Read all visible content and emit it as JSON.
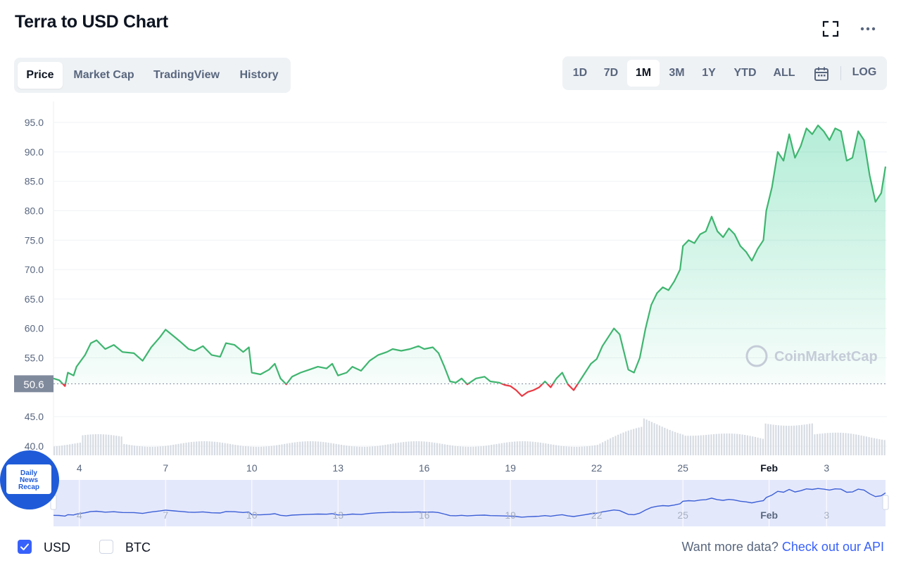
{
  "page": {
    "title": "Terra to USD Chart"
  },
  "toolbar": {
    "fullscreen_icon": "fullscreen-icon",
    "more_icon": "more-dots-icon"
  },
  "tabs": [
    {
      "label": "Price",
      "active": true
    },
    {
      "label": "Market Cap",
      "active": false
    },
    {
      "label": "TradingView",
      "active": false
    },
    {
      "label": "History",
      "active": false
    }
  ],
  "ranges": [
    {
      "label": "1D",
      "active": false
    },
    {
      "label": "7D",
      "active": false
    },
    {
      "label": "1M",
      "active": true
    },
    {
      "label": "3M",
      "active": false
    },
    {
      "label": "1Y",
      "active": false
    },
    {
      "label": "YTD",
      "active": false
    },
    {
      "label": "ALL",
      "active": false
    }
  ],
  "range_controls": {
    "calendar_icon": "calendar-icon",
    "log_label": "LOG"
  },
  "chart_data": {
    "type": "line",
    "title": "Terra to USD Chart",
    "xlabel": "",
    "ylabel": "",
    "ylim": [
      40,
      97
    ],
    "y_ticks": [
      "95.0",
      "90.0",
      "85.0",
      "80.0",
      "75.0",
      "70.0",
      "65.0",
      "60.0",
      "55.0",
      "45.0",
      "40.0"
    ],
    "x_tick_labels": [
      "4",
      "7",
      "10",
      "13",
      "16",
      "19",
      "22",
      "25",
      "Feb",
      "3"
    ],
    "x_tick_days": [
      4,
      7,
      10,
      13,
      16,
      19,
      22,
      25,
      28,
      30
    ],
    "x_range_days": [
      3.1,
      32.05
    ],
    "reference_price": 50.6,
    "reference_label": "50.6",
    "grid": true,
    "watermark": "CoinMarketCap",
    "colors": {
      "up": "#16c784",
      "down": "#ea3943",
      "line_up": "#3fb56f",
      "volume": "#d7dce3",
      "navigator_line": "#3b5fd6",
      "navigator_fill": "#e4e8fb"
    },
    "series": [
      {
        "points": [
          [
            3.1,
            51.5
          ],
          [
            3.3,
            51.2
          ],
          [
            3.5,
            50.2
          ],
          [
            3.6,
            52.5
          ],
          [
            3.8,
            52.0
          ],
          [
            3.9,
            53.5
          ],
          [
            4.2,
            55.5
          ],
          [
            4.4,
            57.5
          ],
          [
            4.6,
            58.0
          ],
          [
            4.9,
            56.5
          ],
          [
            5.2,
            57.2
          ],
          [
            5.5,
            56.0
          ],
          [
            5.9,
            55.8
          ],
          [
            6.2,
            54.5
          ],
          [
            6.5,
            56.8
          ],
          [
            6.8,
            58.5
          ],
          [
            7.0,
            59.8
          ],
          [
            7.3,
            58.6
          ],
          [
            7.5,
            57.8
          ],
          [
            7.8,
            56.5
          ],
          [
            8.0,
            56.2
          ],
          [
            8.3,
            57.0
          ],
          [
            8.6,
            55.5
          ],
          [
            8.9,
            55.2
          ],
          [
            9.1,
            57.5
          ],
          [
            9.4,
            57.2
          ],
          [
            9.7,
            56.0
          ],
          [
            9.9,
            56.8
          ],
          [
            10.0,
            52.5
          ],
          [
            10.3,
            52.2
          ],
          [
            10.6,
            53.0
          ],
          [
            10.8,
            54.0
          ],
          [
            11.0,
            51.5
          ],
          [
            11.2,
            50.5
          ],
          [
            11.4,
            51.8
          ],
          [
            11.7,
            52.5
          ],
          [
            12.0,
            53.0
          ],
          [
            12.3,
            53.5
          ],
          [
            12.6,
            53.2
          ],
          [
            12.8,
            54.0
          ],
          [
            13.0,
            52.0
          ],
          [
            13.3,
            52.5
          ],
          [
            13.5,
            53.5
          ],
          [
            13.8,
            52.8
          ],
          [
            14.1,
            54.5
          ],
          [
            14.4,
            55.5
          ],
          [
            14.7,
            56.0
          ],
          [
            14.9,
            56.5
          ],
          [
            15.2,
            56.2
          ],
          [
            15.5,
            56.5
          ],
          [
            15.8,
            57.0
          ],
          [
            16.0,
            56.5
          ],
          [
            16.3,
            56.8
          ],
          [
            16.5,
            55.8
          ],
          [
            16.7,
            53.5
          ],
          [
            16.9,
            51.0
          ],
          [
            17.1,
            50.8
          ],
          [
            17.3,
            51.5
          ],
          [
            17.5,
            50.5
          ],
          [
            17.8,
            51.5
          ],
          [
            18.1,
            51.8
          ],
          [
            18.3,
            51.0
          ],
          [
            18.6,
            50.8
          ],
          [
            18.8,
            50.4
          ],
          [
            19.0,
            50.2
          ],
          [
            19.2,
            49.5
          ],
          [
            19.4,
            48.5
          ],
          [
            19.6,
            49.2
          ],
          [
            19.8,
            49.5
          ],
          [
            20.0,
            50.0
          ],
          [
            20.2,
            51.0
          ],
          [
            20.4,
            50.0
          ],
          [
            20.6,
            51.5
          ],
          [
            20.8,
            52.5
          ],
          [
            21.0,
            50.5
          ],
          [
            21.2,
            49.5
          ],
          [
            21.4,
            51.0
          ],
          [
            21.6,
            52.5
          ],
          [
            21.8,
            54.0
          ],
          [
            22.0,
            54.8
          ],
          [
            22.2,
            57.0
          ],
          [
            22.4,
            58.5
          ],
          [
            22.6,
            60.0
          ],
          [
            22.8,
            59.0
          ],
          [
            23.0,
            55.0
          ],
          [
            23.1,
            53.0
          ],
          [
            23.3,
            52.5
          ],
          [
            23.5,
            55.0
          ],
          [
            23.7,
            60.0
          ],
          [
            23.9,
            64.0
          ],
          [
            24.1,
            66.0
          ],
          [
            24.3,
            67.0
          ],
          [
            24.5,
            66.5
          ],
          [
            24.7,
            68.0
          ],
          [
            24.9,
            70.0
          ],
          [
            25.0,
            74.0
          ],
          [
            25.2,
            75.0
          ],
          [
            25.4,
            74.5
          ],
          [
            25.6,
            76.0
          ],
          [
            25.8,
            76.5
          ],
          [
            26.0,
            79.0
          ],
          [
            26.2,
            76.5
          ],
          [
            26.4,
            75.5
          ],
          [
            26.6,
            77.0
          ],
          [
            26.8,
            76.0
          ],
          [
            27.0,
            74.0
          ],
          [
            27.2,
            73.0
          ],
          [
            27.4,
            71.5
          ],
          [
            27.6,
            73.5
          ],
          [
            27.8,
            75.0
          ],
          [
            27.9,
            80.0
          ],
          [
            28.1,
            84.0
          ],
          [
            28.3,
            90.0
          ],
          [
            28.5,
            88.5
          ],
          [
            28.7,
            93.0
          ],
          [
            28.9,
            89.0
          ],
          [
            29.1,
            91.0
          ],
          [
            29.3,
            94.0
          ],
          [
            29.5,
            93.0
          ],
          [
            29.7,
            94.5
          ],
          [
            29.9,
            93.5
          ],
          [
            30.1,
            92.0
          ],
          [
            30.3,
            94.0
          ],
          [
            30.5,
            93.5
          ],
          [
            30.7,
            88.5
          ],
          [
            30.9,
            89.0
          ],
          [
            31.1,
            93.5
          ],
          [
            31.3,
            92.0
          ],
          [
            31.5,
            86.0
          ],
          [
            31.7,
            81.5
          ],
          [
            31.9,
            83.0
          ],
          [
            32.05,
            87.5
          ]
        ]
      }
    ]
  },
  "navigator": {
    "x_tick_labels": [
      "4",
      "7",
      "10",
      "13",
      "16",
      "19",
      "22",
      "25",
      "Feb",
      "3"
    ]
  },
  "badge": {
    "line1": "Daily",
    "line2": "News",
    "line3": "Recap"
  },
  "legend": {
    "usd_label": "USD",
    "usd_checked": true,
    "btc_label": "BTC",
    "btc_checked": false
  },
  "footer": {
    "prompt": "Want more data?",
    "link": "Check out our API"
  }
}
